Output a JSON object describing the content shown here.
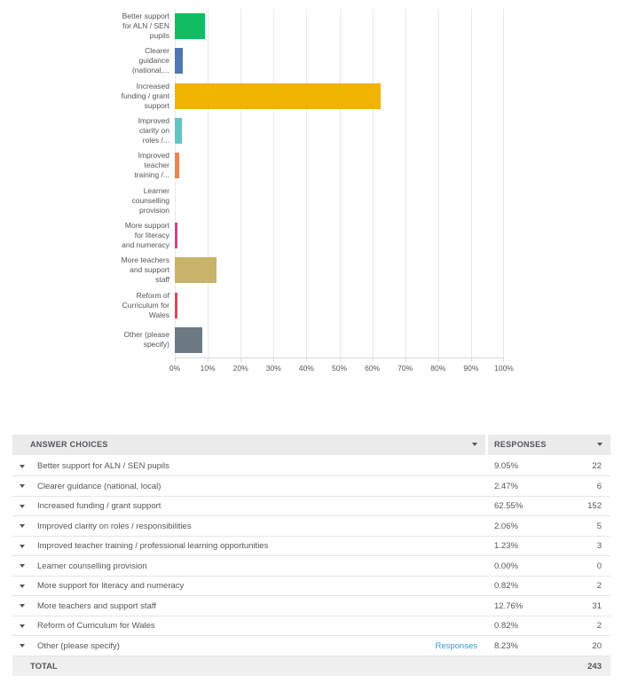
{
  "colors": {
    "text": "#54565b",
    "link": "#2f9fc9",
    "gridline": "#e9e9e9",
    "axis_line": "#d9d9d9",
    "table_header_bg": "#ebebeb",
    "total_row_bg": "#efefef"
  },
  "chart_data": {
    "type": "bar",
    "orientation": "horizontal",
    "title": "",
    "xlabel": "",
    "ylabel": "",
    "xlim": [
      0,
      100
    ],
    "grid": true,
    "x_ticks": [
      "0%",
      "10%",
      "20%",
      "30%",
      "40%",
      "50%",
      "60%",
      "70%",
      "80%",
      "90%",
      "100%"
    ],
    "categories": [
      "Better support for ALN / SEN pupils",
      "Clearer guidance (national, local)",
      "Increased funding / grant support",
      "Improved clarity on roles / responsibilities",
      "Improved teacher training / professional learning opportunities",
      "Learner counselling provision",
      "More support for literacy and numeracy",
      "More teachers and support staff",
      "Reform of Curriculum for Wales",
      "Other (please specify)"
    ],
    "category_labels_displayed": [
      "Better support\nfor ALN / SEN\npupils",
      "Clearer\nguidance\n(national,...",
      "Increased\nfunding / grant\nsupport",
      "Improved\nclarity on\nroles /...",
      "Improved\nteacher\ntraining /...",
      "Learner\ncounselling\nprovision",
      "More support\nfor literacy\nand numeracy",
      "More teachers\nand support\nstaff",
      "Reform of\nCurriculum for\nWales",
      "Other (please\nspecify)"
    ],
    "values": [
      9.05,
      2.47,
      62.55,
      2.06,
      1.23,
      0.0,
      0.82,
      12.76,
      0.82,
      8.23
    ],
    "bar_colors": [
      "#12bc62",
      "#5076b4",
      "#f2b200",
      "#62c6c3",
      "#ef8250",
      null,
      "#c54b80",
      "#c7b369",
      "#d64a5e",
      "#6d7a84"
    ]
  },
  "table": {
    "header": {
      "answer_choices": "ANSWER CHOICES",
      "responses": "RESPONSES"
    },
    "rows": [
      {
        "label": "Better support for ALN / SEN pupils",
        "percent": "9.05%",
        "count": "22"
      },
      {
        "label": "Clearer guidance (national, local)",
        "percent": "2.47%",
        "count": "6"
      },
      {
        "label": "Increased funding / grant support",
        "percent": "62.55%",
        "count": "152"
      },
      {
        "label": "Improved clarity on roles / responsibilities",
        "percent": "2.06%",
        "count": "5"
      },
      {
        "label": "Improved teacher training / professional learning opportunities",
        "percent": "1.23%",
        "count": "3"
      },
      {
        "label": "Learner counselling provision",
        "percent": "0.00%",
        "count": "0"
      },
      {
        "label": "More support for literacy and numeracy",
        "percent": "0.82%",
        "count": "2"
      },
      {
        "label": "More teachers and support staff",
        "percent": "12.76%",
        "count": "31"
      },
      {
        "label": "Reform of Curriculum for Wales",
        "percent": "0.82%",
        "count": "2"
      },
      {
        "label": "Other (please specify)",
        "link": "Responses",
        "percent": "8.23%",
        "count": "20"
      }
    ],
    "total": {
      "label": "TOTAL",
      "count": "243"
    }
  }
}
